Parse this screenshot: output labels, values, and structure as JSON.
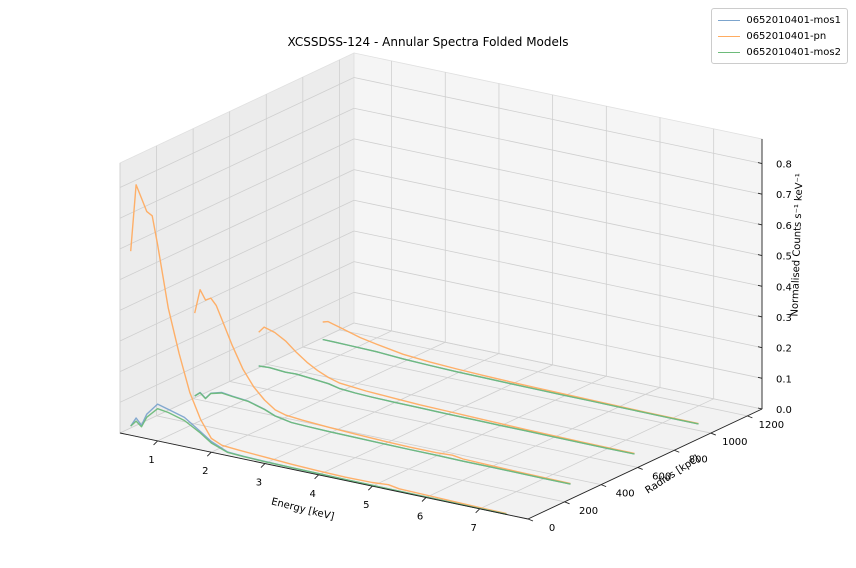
{
  "chart_data": {
    "type": "line",
    "projection": "3d",
    "title": "XCSSDSS-124 - Annular Spectra Folded Models",
    "xlabel": "Energy [keV]",
    "ylabel": "Radius [kpc]",
    "zlabel": "Normalised Counts s⁻¹ keV⁻¹",
    "xlim": [
      0.3,
      7.9
    ],
    "ylim": [
      0,
      1280
    ],
    "zlim": [
      0,
      0.88
    ],
    "x_ticks": [
      1,
      2,
      3,
      4,
      5,
      6,
      7
    ],
    "y_ticks": [
      0,
      200,
      400,
      600,
      800,
      1000,
      1200
    ],
    "z_ticks": [
      0.0,
      0.1,
      0.2,
      0.3,
      0.4,
      0.5,
      0.6,
      0.7,
      0.8
    ],
    "z_tick_labels": [
      "0.0",
      "0.1",
      "0.2",
      "0.3",
      "0.4",
      "0.5",
      "0.6",
      "0.7",
      "0.8"
    ],
    "grid": true,
    "legend_position": "top-right",
    "annuli_radius": [
      0,
      350,
      700,
      1050
    ],
    "series": [
      {
        "name": "0652010401-mos1",
        "color": "#7ca4cd",
        "annuli": [
          {
            "radius": 0,
            "x": [
              0.5,
              0.6,
              0.7,
              0.8,
              1.0,
              1.2,
              1.5,
              1.8,
              2.0,
              2.3,
              2.6,
              3.0,
              3.5,
              4.0,
              4.5,
              5.0,
              5.5,
              6.0,
              6.5,
              7.0,
              7.5
            ],
            "z": [
              0.03,
              0.06,
              0.04,
              0.08,
              0.12,
              0.11,
              0.095,
              0.06,
              0.035,
              0.012,
              0.009,
              0.007,
              0.005,
              0.004,
              0.003,
              0.003,
              0.002,
              0.002,
              0.0015,
              0.001,
              0.001
            ]
          },
          {
            "radius": 350,
            "x": [
              0.5,
              0.6,
              0.7,
              0.8,
              1.0,
              1.2,
              1.5,
              1.8,
              2.0,
              2.3,
              2.6,
              3.0,
              3.5,
              4.0,
              4.5,
              5.0,
              5.5,
              6.0,
              6.5,
              7.0,
              7.5
            ],
            "z": [
              0.03,
              0.045,
              0.03,
              0.05,
              0.06,
              0.055,
              0.05,
              0.035,
              0.02,
              0.01,
              0.008,
              0.006,
              0.005,
              0.004,
              0.003,
              0.003,
              0.002,
              0.002,
              0.0015,
              0.001,
              0.001
            ]
          },
          {
            "radius": 700,
            "x": [
              0.5,
              0.7,
              1.0,
              1.2,
              1.5,
              1.8,
              2.0,
              2.3,
              2.6,
              3.0,
              3.5,
              4.0,
              4.5,
              5.0,
              5.5,
              6.0,
              6.5,
              7.0,
              7.5
            ],
            "z": [
              0.03,
              0.032,
              0.028,
              0.029,
              0.025,
              0.02,
              0.012,
              0.008,
              0.006,
              0.005,
              0.004,
              0.003,
              0.0025,
              0.002,
              0.002,
              0.0015,
              0.001,
              0.001,
              0.001
            ]
          },
          {
            "radius": 1050,
            "x": [
              0.5,
              0.7,
              1.0,
              1.5,
              2.0,
              2.5,
              3.0,
              3.5,
              4.0,
              4.5,
              5.0,
              5.5,
              6.0,
              6.5,
              7.0,
              7.5
            ],
            "z": [
              0.018,
              0.018,
              0.017,
              0.015,
              0.01,
              0.007,
              0.005,
              0.004,
              0.003,
              0.0025,
              0.002,
              0.002,
              0.0015,
              0.001,
              0.001,
              0.001
            ]
          }
        ]
      },
      {
        "name": "0652010401-pn",
        "color": "#ffac61",
        "annuli": [
          {
            "radius": 0,
            "x": [
              0.5,
              0.6,
              0.7,
              0.8,
              0.9,
              1.0,
              1.2,
              1.4,
              1.6,
              1.8,
              2.0,
              2.2,
              2.5,
              3.0,
              3.5,
              4.0,
              4.5,
              5.0,
              5.3,
              5.5,
              6.0,
              6.5,
              7.0,
              7.5
            ],
            "z": [
              0.6,
              0.82,
              0.78,
              0.74,
              0.73,
              0.64,
              0.44,
              0.3,
              0.18,
              0.1,
              0.045,
              0.03,
              0.026,
              0.021,
              0.016,
              0.013,
              0.011,
              0.012,
              0.016,
              0.01,
              0.008,
              0.006,
              0.004,
              0.003
            ]
          },
          {
            "radius": 350,
            "x": [
              0.5,
              0.6,
              0.7,
              0.8,
              0.9,
              1.0,
              1.2,
              1.4,
              1.6,
              1.8,
              2.0,
              2.2,
              2.5,
              3.0,
              3.5,
              4.0,
              4.5,
              5.0,
              5.3,
              5.5,
              6.0,
              6.5,
              7.0,
              7.5
            ],
            "z": [
              0.3,
              0.38,
              0.35,
              0.36,
              0.34,
              0.3,
              0.22,
              0.15,
              0.1,
              0.065,
              0.04,
              0.03,
              0.025,
              0.02,
              0.016,
              0.013,
              0.011,
              0.011,
              0.014,
              0.009,
              0.007,
              0.005,
              0.004,
              0.003
            ]
          },
          {
            "radius": 700,
            "x": [
              0.5,
              0.6,
              0.7,
              0.8,
              1.0,
              1.2,
              1.4,
              1.6,
              1.8,
              2.0,
              2.5,
              3.0,
              3.5,
              4.0,
              4.5,
              5.0,
              5.5,
              6.0,
              6.5,
              7.0,
              7.5
            ],
            "z": [
              0.14,
              0.16,
              0.155,
              0.15,
              0.13,
              0.1,
              0.075,
              0.055,
              0.04,
              0.03,
              0.022,
              0.018,
              0.014,
              0.012,
              0.01,
              0.008,
              0.006,
              0.005,
              0.004,
              0.003,
              0.003
            ]
          },
          {
            "radius": 1050,
            "x": [
              0.5,
              0.6,
              0.7,
              0.8,
              1.0,
              1.2,
              1.5,
              2.0,
              2.5,
              3.0,
              3.5,
              4.0,
              4.5,
              5.0,
              5.5,
              6.0,
              6.5,
              7.0,
              7.5
            ],
            "z": [
              0.075,
              0.08,
              0.075,
              0.07,
              0.06,
              0.05,
              0.04,
              0.025,
              0.018,
              0.014,
              0.011,
              0.009,
              0.007,
              0.006,
              0.005,
              0.004,
              0.003,
              0.0025,
              0.002
            ]
          }
        ]
      },
      {
        "name": "0652010401-mos2",
        "color": "#6dbb7a",
        "annuli": [
          {
            "radius": 0,
            "x": [
              0.5,
              0.6,
              0.7,
              0.8,
              1.0,
              1.2,
              1.5,
              1.8,
              2.0,
              2.3,
              2.6,
              3.0,
              3.5,
              4.0,
              4.5,
              5.0,
              5.5,
              6.0,
              6.5,
              7.0,
              7.5
            ],
            "z": [
              0.03,
              0.05,
              0.035,
              0.07,
              0.105,
              0.1,
              0.085,
              0.055,
              0.03,
              0.011,
              0.008,
              0.006,
              0.005,
              0.004,
              0.003,
              0.003,
              0.002,
              0.002,
              0.0015,
              0.001,
              0.001
            ]
          },
          {
            "radius": 350,
            "x": [
              0.5,
              0.6,
              0.7,
              0.8,
              1.0,
              1.2,
              1.5,
              1.8,
              2.0,
              2.3,
              2.6,
              3.0,
              3.5,
              4.0,
              4.5,
              5.0,
              5.5,
              6.0,
              6.5,
              7.0,
              7.5
            ],
            "z": [
              0.03,
              0.044,
              0.029,
              0.049,
              0.058,
              0.054,
              0.049,
              0.034,
              0.02,
              0.01,
              0.008,
              0.006,
              0.005,
              0.004,
              0.003,
              0.003,
              0.002,
              0.002,
              0.0015,
              0.001,
              0.001
            ]
          },
          {
            "radius": 700,
            "x": [
              0.5,
              0.7,
              1.0,
              1.2,
              1.5,
              1.8,
              2.0,
              2.3,
              2.6,
              3.0,
              3.5,
              4.0,
              4.5,
              5.0,
              5.5,
              6.0,
              6.5,
              7.0,
              7.5
            ],
            "z": [
              0.03,
              0.032,
              0.028,
              0.029,
              0.025,
              0.02,
              0.012,
              0.008,
              0.006,
              0.005,
              0.004,
              0.003,
              0.0025,
              0.002,
              0.002,
              0.0015,
              0.001,
              0.001,
              0.001
            ]
          },
          {
            "radius": 1050,
            "x": [
              0.5,
              0.7,
              1.0,
              1.5,
              2.0,
              2.5,
              3.0,
              3.5,
              4.0,
              4.5,
              5.0,
              5.5,
              6.0,
              6.5,
              7.0,
              7.5
            ],
            "z": [
              0.018,
              0.018,
              0.017,
              0.015,
              0.01,
              0.007,
              0.005,
              0.004,
              0.003,
              0.0025,
              0.002,
              0.002,
              0.0015,
              0.001,
              0.001,
              0.001
            ]
          }
        ]
      }
    ]
  }
}
